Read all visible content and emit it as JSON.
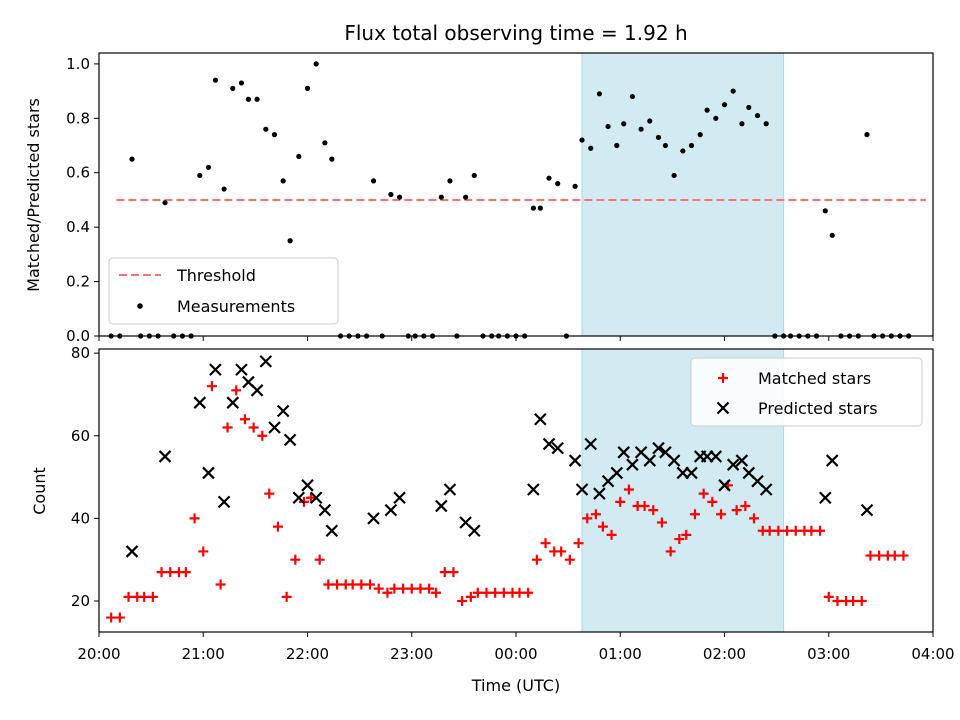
{
  "colors": {
    "threshold": "#ff7070",
    "measurement": "#000000",
    "matched": "#ff0000",
    "predicted": "#000000",
    "highlight": "#add8e6"
  },
  "chart_data": [
    {
      "id": "ratio",
      "type": "scatter",
      "title": "Flux total observing time = 1.92 h",
      "ylabel": "Matched/Predicted stars",
      "xlim": [
        "20:00",
        "04:00"
      ],
      "ylim": [
        0.0,
        1.04
      ],
      "yticks": [
        "0.0",
        "0.2",
        "0.4",
        "0.6",
        "0.8",
        "1.0"
      ],
      "highlight_span": [
        "00:38",
        "02:34"
      ],
      "legend": {
        "position": "lower left",
        "threshold_label": "Threshold",
        "measurements_label": "Measurements"
      },
      "threshold": {
        "y": 0.5,
        "x_start": "20:10",
        "x_end": "03:56"
      },
      "series": [
        {
          "name": "Measurements",
          "points": [
            [
              "20:07",
              0.0
            ],
            [
              "20:12",
              0.0
            ],
            [
              "20:19",
              0.65
            ],
            [
              "20:24",
              0.0
            ],
            [
              "20:29",
              0.0
            ],
            [
              "20:34",
              0.0
            ],
            [
              "20:38",
              0.49
            ],
            [
              "20:43",
              0.0
            ],
            [
              "20:48",
              0.0
            ],
            [
              "20:53",
              0.0
            ],
            [
              "20:58",
              0.59
            ],
            [
              "21:03",
              0.62
            ],
            [
              "21:07",
              0.94
            ],
            [
              "21:12",
              0.54
            ],
            [
              "21:17",
              0.91
            ],
            [
              "21:22",
              0.93
            ],
            [
              "21:26",
              0.87
            ],
            [
              "21:31",
              0.87
            ],
            [
              "21:36",
              0.76
            ],
            [
              "21:41",
              0.74
            ],
            [
              "21:46",
              0.57
            ],
            [
              "21:50",
              0.35
            ],
            [
              "21:55",
              0.66
            ],
            [
              "22:00",
              0.91
            ],
            [
              "22:05",
              1.0
            ],
            [
              "22:10",
              0.71
            ],
            [
              "22:14",
              0.65
            ],
            [
              "22:19",
              0.0
            ],
            [
              "22:24",
              0.0
            ],
            [
              "22:29",
              0.0
            ],
            [
              "22:34",
              0.0
            ],
            [
              "22:38",
              0.57
            ],
            [
              "22:43",
              0.0
            ],
            [
              "22:48",
              0.52
            ],
            [
              "22:53",
              0.51
            ],
            [
              "22:58",
              0.0
            ],
            [
              "23:02",
              0.0
            ],
            [
              "23:07",
              0.0
            ],
            [
              "23:12",
              0.0
            ],
            [
              "23:17",
              0.51
            ],
            [
              "23:22",
              0.57
            ],
            [
              "23:26",
              0.0
            ],
            [
              "23:31",
              0.51
            ],
            [
              "23:36",
              0.59
            ],
            [
              "23:41",
              0.0
            ],
            [
              "23:46",
              0.0
            ],
            [
              "23:50",
              0.0
            ],
            [
              "23:55",
              0.0
            ],
            [
              "00:00",
              0.0
            ],
            [
              "00:05",
              0.0
            ],
            [
              "00:10",
              0.47
            ],
            [
              "00:14",
              0.47
            ],
            [
              "00:19",
              0.58
            ],
            [
              "00:24",
              0.56
            ],
            [
              "00:29",
              0.0
            ],
            [
              "00:34",
              0.55
            ],
            [
              "00:38",
              0.72
            ],
            [
              "00:43",
              0.69
            ],
            [
              "00:48",
              0.89
            ],
            [
              "00:53",
              0.77
            ],
            [
              "00:58",
              0.7
            ],
            [
              "01:02",
              0.78
            ],
            [
              "01:07",
              0.88
            ],
            [
              "01:12",
              0.76
            ],
            [
              "01:17",
              0.79
            ],
            [
              "01:22",
              0.73
            ],
            [
              "01:26",
              0.7
            ],
            [
              "01:31",
              0.59
            ],
            [
              "01:36",
              0.68
            ],
            [
              "01:41",
              0.7
            ],
            [
              "01:46",
              0.74
            ],
            [
              "01:50",
              0.83
            ],
            [
              "01:55",
              0.8
            ],
            [
              "02:00",
              0.85
            ],
            [
              "02:05",
              0.9
            ],
            [
              "02:10",
              0.78
            ],
            [
              "02:14",
              0.84
            ],
            [
              "02:19",
              0.81
            ],
            [
              "02:24",
              0.78
            ],
            [
              "02:29",
              0.0
            ],
            [
              "02:34",
              0.0
            ],
            [
              "02:38",
              0.0
            ],
            [
              "02:43",
              0.0
            ],
            [
              "02:48",
              0.0
            ],
            [
              "02:53",
              0.0
            ],
            [
              "02:58",
              0.46
            ],
            [
              "03:02",
              0.37
            ],
            [
              "03:07",
              0.0
            ],
            [
              "03:12",
              0.0
            ],
            [
              "03:17",
              0.0
            ],
            [
              "03:22",
              0.74
            ],
            [
              "03:26",
              0.0
            ],
            [
              "03:31",
              0.0
            ],
            [
              "03:36",
              0.0
            ],
            [
              "03:41",
              0.0
            ],
            [
              "03:46",
              0.0
            ]
          ]
        }
      ]
    },
    {
      "id": "counts",
      "type": "scatter",
      "ylabel": "Count",
      "xlabel": "Time (UTC)",
      "xlim": [
        "20:00",
        "04:00"
      ],
      "ylim": [
        12.5,
        81.0
      ],
      "yticks": [
        "20",
        "40",
        "60",
        "80"
      ],
      "xticks": [
        "20:00",
        "21:00",
        "22:00",
        "23:00",
        "00:00",
        "01:00",
        "02:00",
        "03:00",
        "04:00"
      ],
      "highlight_span": [
        "00:38",
        "02:34"
      ],
      "legend": {
        "position": "upper right"
      },
      "series": [
        {
          "name": "Matched stars",
          "marker": "+",
          "points": [
            [
              "20:07",
              16
            ],
            [
              "20:12",
              16
            ],
            [
              "20:17",
              21
            ],
            [
              "20:22",
              21
            ],
            [
              "20:26",
              21
            ],
            [
              "20:31",
              21
            ],
            [
              "20:36",
              27
            ],
            [
              "20:41",
              27
            ],
            [
              "20:46",
              27
            ],
            [
              "20:50",
              27
            ],
            [
              "20:55",
              40
            ],
            [
              "21:00",
              32
            ],
            [
              "21:05",
              72
            ],
            [
              "21:10",
              24
            ],
            [
              "21:14",
              62
            ],
            [
              "21:19",
              71
            ],
            [
              "21:24",
              64
            ],
            [
              "21:29",
              62
            ],
            [
              "21:34",
              60
            ],
            [
              "21:38",
              46
            ],
            [
              "21:43",
              38
            ],
            [
              "21:48",
              21
            ],
            [
              "21:53",
              30
            ],
            [
              "21:58",
              44
            ],
            [
              "22:02",
              45
            ],
            [
              "22:07",
              30
            ],
            [
              "22:12",
              24
            ],
            [
              "22:17",
              24
            ],
            [
              "22:22",
              24
            ],
            [
              "22:26",
              24
            ],
            [
              "22:31",
              24
            ],
            [
              "22:36",
              24
            ],
            [
              "22:41",
              23
            ],
            [
              "22:46",
              22
            ],
            [
              "22:50",
              23
            ],
            [
              "22:55",
              23
            ],
            [
              "23:00",
              23
            ],
            [
              "23:05",
              23
            ],
            [
              "23:10",
              23
            ],
            [
              "23:14",
              22
            ],
            [
              "23:19",
              27
            ],
            [
              "23:24",
              27
            ],
            [
              "23:29",
              20
            ],
            [
              "23:34",
              21
            ],
            [
              "23:38",
              22
            ],
            [
              "23:43",
              22
            ],
            [
              "23:48",
              22
            ],
            [
              "23:53",
              22
            ],
            [
              "23:58",
              22
            ],
            [
              "00:02",
              22
            ],
            [
              "00:07",
              22
            ],
            [
              "00:12",
              30
            ],
            [
              "00:17",
              34
            ],
            [
              "00:22",
              32
            ],
            [
              "00:26",
              32
            ],
            [
              "00:31",
              30
            ],
            [
              "00:36",
              34
            ],
            [
              "00:41",
              40
            ],
            [
              "00:46",
              41
            ],
            [
              "00:50",
              38
            ],
            [
              "00:55",
              36
            ],
            [
              "01:00",
              44
            ],
            [
              "01:05",
              47
            ],
            [
              "01:10",
              43
            ],
            [
              "01:14",
              43
            ],
            [
              "01:19",
              42
            ],
            [
              "01:24",
              39
            ],
            [
              "01:29",
              32
            ],
            [
              "01:34",
              35
            ],
            [
              "01:38",
              36
            ],
            [
              "01:43",
              41
            ],
            [
              "01:48",
              46
            ],
            [
              "01:53",
              44
            ],
            [
              "01:58",
              41
            ],
            [
              "02:02",
              48
            ],
            [
              "02:07",
              42
            ],
            [
              "02:12",
              43
            ],
            [
              "02:17",
              40
            ],
            [
              "02:22",
              37
            ],
            [
              "02:26",
              37
            ],
            [
              "02:31",
              37
            ],
            [
              "02:36",
              37
            ],
            [
              "02:41",
              37
            ],
            [
              "02:46",
              37
            ],
            [
              "02:50",
              37
            ],
            [
              "02:55",
              37
            ],
            [
              "03:00",
              21
            ],
            [
              "03:05",
              20
            ],
            [
              "03:10",
              20
            ],
            [
              "03:14",
              20
            ],
            [
              "03:19",
              20
            ],
            [
              "03:24",
              31
            ],
            [
              "03:29",
              31
            ],
            [
              "03:34",
              31
            ],
            [
              "03:38",
              31
            ],
            [
              "03:43",
              31
            ]
          ]
        },
        {
          "name": "Predicted stars",
          "marker": "x",
          "points": [
            [
              "20:19",
              32
            ],
            [
              "20:38",
              55
            ],
            [
              "20:58",
              68
            ],
            [
              "21:03",
              51
            ],
            [
              "21:07",
              76
            ],
            [
              "21:12",
              44
            ],
            [
              "21:17",
              68
            ],
            [
              "21:22",
              76
            ],
            [
              "21:26",
              73
            ],
            [
              "21:31",
              71
            ],
            [
              "21:36",
              78
            ],
            [
              "21:41",
              62
            ],
            [
              "21:46",
              66
            ],
            [
              "21:50",
              59
            ],
            [
              "21:55",
              45
            ],
            [
              "22:00",
              48
            ],
            [
              "22:05",
              45
            ],
            [
              "22:10",
              42
            ],
            [
              "22:14",
              37
            ],
            [
              "22:38",
              40
            ],
            [
              "22:48",
              42
            ],
            [
              "22:53",
              45
            ],
            [
              "23:17",
              43
            ],
            [
              "23:22",
              47
            ],
            [
              "23:31",
              39
            ],
            [
              "23:36",
              37
            ],
            [
              "00:10",
              47
            ],
            [
              "00:14",
              64
            ],
            [
              "00:19",
              58
            ],
            [
              "00:24",
              57
            ],
            [
              "00:34",
              54
            ],
            [
              "00:38",
              47
            ],
            [
              "00:43",
              58
            ],
            [
              "00:48",
              46
            ],
            [
              "00:53",
              49
            ],
            [
              "00:58",
              51
            ],
            [
              "01:02",
              56
            ],
            [
              "01:07",
              53
            ],
            [
              "01:12",
              56
            ],
            [
              "01:17",
              54
            ],
            [
              "01:22",
              57
            ],
            [
              "01:26",
              56
            ],
            [
              "01:31",
              54
            ],
            [
              "01:36",
              51
            ],
            [
              "01:41",
              51
            ],
            [
              "01:46",
              55
            ],
            [
              "01:50",
              55
            ],
            [
              "01:55",
              55
            ],
            [
              "02:00",
              48
            ],
            [
              "02:05",
              53
            ],
            [
              "02:10",
              54
            ],
            [
              "02:14",
              51
            ],
            [
              "02:19",
              49
            ],
            [
              "02:24",
              47
            ],
            [
              "02:58",
              45
            ],
            [
              "03:02",
              54
            ],
            [
              "03:22",
              42
            ]
          ]
        }
      ]
    }
  ]
}
